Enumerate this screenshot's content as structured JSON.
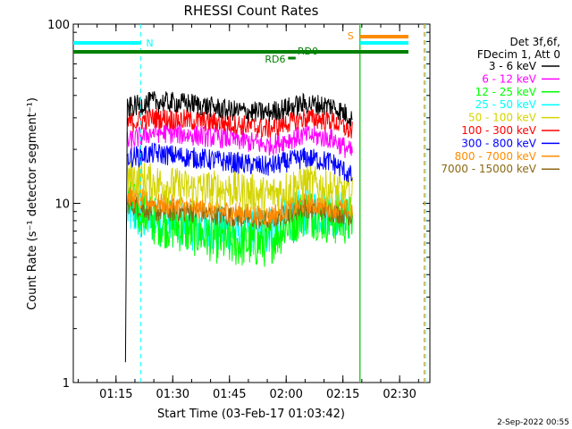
{
  "chart_data": {
    "type": "line",
    "title": "RHESSI Count Rates",
    "xlabel": "Start Time (03-Feb-17 01:03:42)",
    "ylabel": "Count Rate (s⁻¹ detector segment⁻¹)",
    "x_range": [
      "01:03:42",
      "02:38:00"
    ],
    "ylim": [
      1,
      100
    ],
    "y_scale": "log",
    "x_ticks": [
      "01:15",
      "01:30",
      "01:45",
      "02:00",
      "02:15",
      "02:30"
    ],
    "y_ticks": [
      "1",
      "10",
      "100"
    ],
    "legend_position": "right",
    "legend_header": [
      "Det 3f,6f,",
      "FDecim 1, Att 0"
    ],
    "series": [
      {
        "name": "3 - 6 keV",
        "color": "#000000",
        "x": [
          "01:17:30",
          "01:18:00",
          "01:25",
          "01:35",
          "01:45",
          "01:55",
          "02:05",
          "02:12",
          "02:17:30"
        ],
        "values": [
          1.3,
          34,
          37,
          36,
          33,
          32,
          36,
          35,
          30
        ]
      },
      {
        "name": "6 - 12 keV",
        "color": "#ff00ff",
        "x": [
          "01:18:00",
          "01:25",
          "01:35",
          "01:45",
          "01:55",
          "02:05",
          "02:12",
          "02:17:30"
        ],
        "values": [
          22,
          25,
          24,
          23,
          21,
          24,
          23,
          19
        ]
      },
      {
        "name": "12 - 25 keV",
        "color": "#00ff00",
        "x": [
          "01:18:00",
          "01:25",
          "01:35",
          "01:45",
          "01:55",
          "02:05",
          "02:12",
          "02:17:30"
        ],
        "values": [
          10,
          8,
          7,
          6,
          6,
          9,
          8,
          8
        ]
      },
      {
        "name": "25 - 50 keV",
        "color": "#00ffff",
        "x": [
          "01:18:00",
          "01:25",
          "01:35",
          "01:45",
          "01:55",
          "02:05",
          "02:12",
          "02:17:30"
        ],
        "values": [
          9,
          8,
          7.5,
          7,
          7,
          9,
          9,
          8.5
        ]
      },
      {
        "name": "50 - 100 keV",
        "color": "#d4d400",
        "x": [
          "01:18:00",
          "01:25",
          "01:35",
          "01:45",
          "01:55",
          "02:05",
          "02:12",
          "02:17:30"
        ],
        "values": [
          14,
          13,
          12,
          12,
          11,
          13,
          12,
          11
        ]
      },
      {
        "name": "100 - 300 keV",
        "color": "#ff0000",
        "x": [
          "01:18:00",
          "01:25",
          "01:35",
          "01:45",
          "01:55",
          "02:05",
          "02:12",
          "02:17:30"
        ],
        "values": [
          28,
          30,
          29,
          28,
          26,
          30,
          29,
          25
        ]
      },
      {
        "name": "300 - 800 keV",
        "color": "#0000ff",
        "x": [
          "01:18:00",
          "01:25",
          "01:35",
          "01:45",
          "01:55",
          "02:05",
          "02:12",
          "02:17:30"
        ],
        "values": [
          18,
          19,
          18,
          17,
          16,
          18,
          17,
          14
        ]
      },
      {
        "name": "800 - 7000 keV",
        "color": "#ff8c00",
        "x": [
          "01:18:00",
          "01:25",
          "01:35",
          "01:45",
          "01:55",
          "02:05",
          "02:12",
          "02:17:30"
        ],
        "values": [
          11,
          10,
          9.5,
          9,
          8.5,
          10,
          9.5,
          9
        ]
      },
      {
        "name": "7000 - 15000 keV",
        "color": "#8b6914",
        "x": [
          "01:18:00",
          "01:25",
          "01:35",
          "01:45",
          "01:55",
          "02:05",
          "02:12",
          "02:17:30"
        ],
        "values": [
          10,
          9,
          9,
          8.5,
          8,
          9.5,
          9,
          8.5
        ]
      }
    ],
    "annotations": [
      {
        "label": "N",
        "color": "#00ffff"
      },
      {
        "label": "S",
        "color": "#ff8c00"
      },
      {
        "label": "RD0",
        "color": "#008000"
      },
      {
        "label": "RD6",
        "color": "#008000"
      }
    ],
    "footer_date": "2-Sep-2022 00:55"
  }
}
